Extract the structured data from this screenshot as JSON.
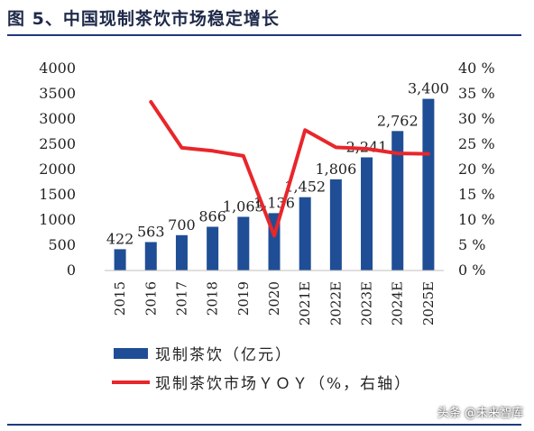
{
  "title": "图 5、中国现制茶饮市场稳定增长",
  "watermark": "头条 @未来智库",
  "chart_data": {
    "type": "bar",
    "categories": [
      "2015",
      "2016",
      "2017",
      "2018",
      "2019",
      "2020",
      "2021E",
      "2022E",
      "2023E",
      "2024E",
      "2025E"
    ],
    "series": [
      {
        "name": "现制茶饮（亿元）",
        "type": "bar",
        "axis": "left",
        "color": "#1f4e96",
        "values": [
          422,
          563,
          700,
          866,
          1063,
          1136,
          1452,
          1806,
          2241,
          2762,
          3400
        ],
        "labels": [
          "422",
          "563",
          "700",
          "866",
          "1,063",
          "1,136",
          "1,452",
          "1,806",
          "2,241",
          "2,762",
          "3,400"
        ]
      },
      {
        "name": "现制茶饮市场YOY（%，右轴）",
        "type": "line",
        "axis": "right",
        "color": "#e8262b",
        "values": [
          null,
          33.4,
          24.3,
          23.7,
          22.7,
          6.9,
          27.8,
          24.4,
          24.1,
          23.2,
          23.1
        ]
      }
    ],
    "y_left": {
      "min": 0,
      "max": 4000,
      "ticks": [
        0,
        500,
        1000,
        1500,
        2000,
        2500,
        3000,
        3500,
        4000
      ],
      "tick_labels": [
        "0",
        "500",
        "1000",
        "1500",
        "2000",
        "2500",
        "3000",
        "3500",
        "4000"
      ]
    },
    "y_right": {
      "min": 0,
      "max": 40,
      "ticks": [
        0,
        5,
        10,
        15,
        20,
        25,
        30,
        35,
        40
      ],
      "tick_labels": [
        "0 %",
        "5 %",
        "10 %",
        "15 %",
        "20 %",
        "25 %",
        "30 %",
        "35 %",
        "40 %"
      ]
    },
    "legend": {
      "placement": "bottom",
      "items": [
        {
          "label": "现制茶饮（亿元）",
          "kind": "bar",
          "color": "#1f4e96"
        },
        {
          "label": "现制茶饮市场ＹＯＹ（%，右轴）",
          "kind": "line",
          "color": "#e8262b"
        }
      ]
    },
    "grid": false
  }
}
